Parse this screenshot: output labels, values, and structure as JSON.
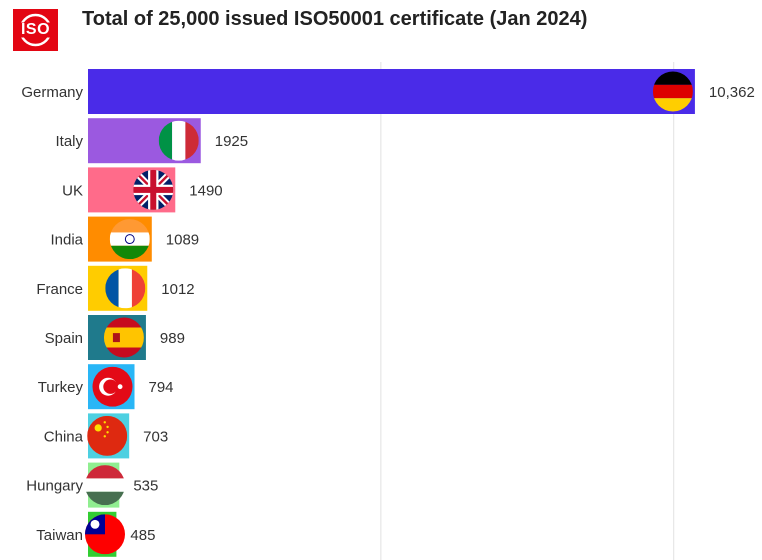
{
  "brand": {
    "logo_text": "ISO",
    "logo_color": "#e30613"
  },
  "chart_data": {
    "type": "bar",
    "orientation": "horizontal",
    "title": "Total of 25,000 issued ISO50001 certificate (Jan 2024)",
    "categories": [
      "Germany",
      "Italy",
      "UK",
      "India",
      "France",
      "Spain",
      "Turkey",
      "China",
      "Hungary",
      "Taiwan"
    ],
    "values": [
      10362,
      1925,
      1490,
      1089,
      1012,
      989,
      794,
      703,
      535,
      485
    ],
    "value_labels": [
      "10,362",
      "1925",
      "1490",
      "1089",
      "1012",
      "989",
      "794",
      "703",
      "535",
      "485"
    ],
    "colors": [
      "#4a2be8",
      "#9b59e0",
      "#ff6b8a",
      "#ff8c00",
      "#ffcc00",
      "#1f7a8c",
      "#29b6f6",
      "#4dd0e1",
      "#90ee90",
      "#32cd32"
    ],
    "flag_icons": [
      "germany-flag-icon",
      "italy-flag-icon",
      "uk-flag-icon",
      "india-flag-icon",
      "france-flag-icon",
      "spain-flag-icon",
      "turkey-flag-icon",
      "china-flag-icon",
      "hungary-flag-icon",
      "taiwan-flag-icon"
    ],
    "xlim": [
      0,
      10500
    ],
    "grid": true,
    "xlabel": "",
    "ylabel": ""
  }
}
